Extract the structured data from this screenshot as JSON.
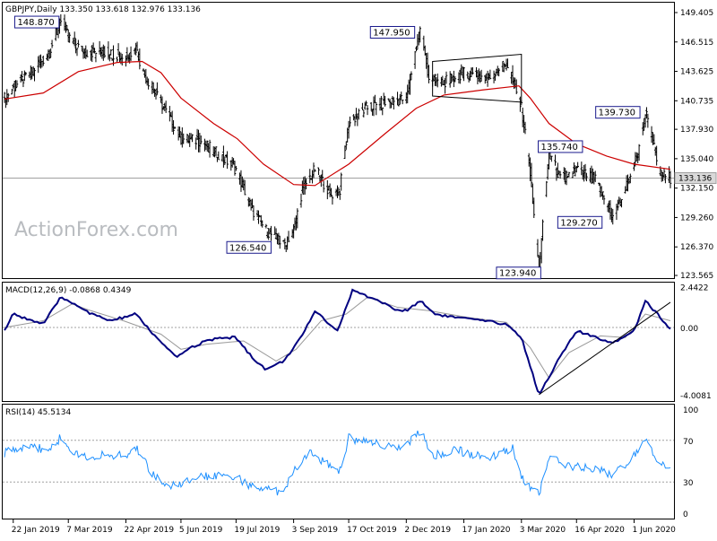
{
  "chart_data": [
    {
      "type": "candlestick",
      "title": "GBPJPY,Daily  133.350 133.618 132.976 133.136",
      "watermark": "ActionForex.com",
      "ylim": [
        123.565,
        149.405
      ],
      "yticks": [
        "149.405",
        "146.515",
        "143.625",
        "140.735",
        "137.930",
        "135.040",
        "132.150",
        "129.260",
        "126.370",
        "123.565"
      ],
      "current_price": "133.136",
      "xticks": [
        "22 Jan 2019",
        "7 Mar 2019",
        "22 Apr 2019",
        "5 Jun 2019",
        "19 Jul 2019",
        "3 Sep 2019",
        "17 Oct 2019",
        "2 Dec 2019",
        "17 Jan 2020",
        "3 Mar 2020",
        "16 Apr 2020",
        "1 Jun 2020"
      ],
      "series": [
        {
          "name": "price",
          "color": "#000000"
        },
        {
          "name": "SMA",
          "color": "#cc0000"
        }
      ],
      "annotations": [
        {
          "label": "148.870",
          "value": 148.87,
          "date": "2019-03-01"
        },
        {
          "label": "147.950",
          "value": 147.95,
          "date": "2019-12-13"
        },
        {
          "label": "126.540",
          "value": 126.54,
          "date": "2019-08-26"
        },
        {
          "label": "139.730",
          "value": 139.73,
          "date": "2020-06-10"
        },
        {
          "label": "135.740",
          "value": 135.74,
          "date": "2020-03-25"
        },
        {
          "label": "129.270",
          "value": 129.27,
          "date": "2020-05-15"
        },
        {
          "label": "123.940",
          "value": 123.94,
          "date": "2020-03-17"
        }
      ],
      "price_path": [
        [
          "2019-01-15",
          141.0
        ],
        [
          "2019-01-22",
          142.0
        ],
        [
          "2019-02-05",
          143.5
        ],
        [
          "2019-02-20",
          145.5
        ],
        [
          "2019-03-01",
          148.87
        ],
        [
          "2019-03-07",
          147.0
        ],
        [
          "2019-03-20",
          145.5
        ],
        [
          "2019-04-05",
          145.5
        ],
        [
          "2019-04-22",
          145.0
        ],
        [
          "2019-04-30",
          145.9
        ],
        [
          "2019-05-06",
          143.5
        ],
        [
          "2019-05-20",
          140.5
        ],
        [
          "2019-06-05",
          137.0
        ],
        [
          "2019-06-20",
          136.8
        ],
        [
          "2019-07-05",
          135.5
        ],
        [
          "2019-07-19",
          134.0
        ],
        [
          "2019-08-01",
          130.0
        ],
        [
          "2019-08-12",
          128.0
        ],
        [
          "2019-08-26",
          126.54
        ],
        [
          "2019-09-03",
          128.0
        ],
        [
          "2019-09-10",
          132.0
        ],
        [
          "2019-09-20",
          134.0
        ],
        [
          "2019-10-03",
          131.5
        ],
        [
          "2019-10-10",
          132.0
        ],
        [
          "2019-10-17",
          138.5
        ],
        [
          "2019-10-31",
          140.0
        ],
        [
          "2019-11-15",
          140.5
        ],
        [
          "2019-12-02",
          141.0
        ],
        [
          "2019-12-13",
          147.95
        ],
        [
          "2019-12-20",
          143.0
        ],
        [
          "2019-12-31",
          142.5
        ],
        [
          "2020-01-17",
          143.5
        ],
        [
          "2020-02-05",
          143.0
        ],
        [
          "2020-02-20",
          144.5
        ],
        [
          "2020-03-03",
          140.0
        ],
        [
          "2020-03-09",
          135.0
        ],
        [
          "2020-03-17",
          123.94
        ],
        [
          "2020-03-25",
          135.74
        ],
        [
          "2020-04-03",
          133.0
        ],
        [
          "2020-04-16",
          134.0
        ],
        [
          "2020-05-01",
          133.0
        ],
        [
          "2020-05-15",
          129.27
        ],
        [
          "2020-05-25",
          132.0
        ],
        [
          "2020-06-05",
          136.0
        ],
        [
          "2020-06-10",
          139.73
        ],
        [
          "2020-06-22",
          133.5
        ],
        [
          "2020-06-30",
          133.14
        ]
      ],
      "sma_path": [
        [
          "2019-01-15",
          140.9
        ],
        [
          "2019-02-15",
          141.5
        ],
        [
          "2019-03-15",
          143.6
        ],
        [
          "2019-04-15",
          144.5
        ],
        [
          "2019-05-05",
          144.6
        ],
        [
          "2019-05-20",
          143.5
        ],
        [
          "2019-06-05",
          141.0
        ],
        [
          "2019-07-01",
          138.5
        ],
        [
          "2019-07-20",
          137.0
        ],
        [
          "2019-08-10",
          134.5
        ],
        [
          "2019-09-03",
          132.5
        ],
        [
          "2019-09-20",
          132.4
        ],
        [
          "2019-10-17",
          134.5
        ],
        [
          "2019-11-15",
          137.5
        ],
        [
          "2019-12-10",
          140.0
        ],
        [
          "2020-01-01",
          141.3
        ],
        [
          "2020-02-01",
          141.8
        ],
        [
          "2020-03-01",
          142.2
        ],
        [
          "2020-03-10",
          141.0
        ],
        [
          "2020-03-25",
          138.5
        ],
        [
          "2020-04-16",
          136.5
        ],
        [
          "2020-05-10",
          135.3
        ],
        [
          "2020-06-01",
          134.5
        ],
        [
          "2020-06-30",
          134.0
        ]
      ]
    },
    {
      "type": "line",
      "title": "MACD(12,26,9) -0.0868 0.4349",
      "yticks": [
        "2.4422",
        "0.00",
        "-4.0081"
      ],
      "ylim": [
        -4.0081,
        2.4422
      ],
      "trendline": [
        [
          "2020-03-17",
          -4.0
        ],
        [
          "2020-06-30",
          1.5
        ]
      ],
      "series": [
        {
          "name": "MACD",
          "color": "#000080"
        },
        {
          "name": "Signal",
          "color": "#999999"
        }
      ],
      "macd_path": [
        [
          "2019-01-15",
          -0.2
        ],
        [
          "2019-01-22",
          0.8
        ],
        [
          "2019-02-15",
          0.2
        ],
        [
          "2019-03-01",
          1.8
        ],
        [
          "2019-03-15",
          1.3
        ],
        [
          "2019-03-25",
          0.8
        ],
        [
          "2019-04-10",
          0.4
        ],
        [
          "2019-04-30",
          0.8
        ],
        [
          "2019-05-15",
          -0.5
        ],
        [
          "2019-06-01",
          -1.8
        ],
        [
          "2019-06-10",
          -1.3
        ],
        [
          "2019-06-25",
          -0.8
        ],
        [
          "2019-07-10",
          -0.6
        ],
        [
          "2019-07-19",
          -0.6
        ],
        [
          "2019-08-01",
          -1.8
        ],
        [
          "2019-08-12",
          -2.5
        ],
        [
          "2019-08-26",
          -2.0
        ],
        [
          "2019-09-10",
          -0.5
        ],
        [
          "2019-09-20",
          1.0
        ],
        [
          "2019-10-08",
          -0.2
        ],
        [
          "2019-10-20",
          2.2
        ],
        [
          "2019-11-10",
          1.6
        ],
        [
          "2019-11-25",
          1.0
        ],
        [
          "2019-12-02",
          1.0
        ],
        [
          "2019-12-13",
          1.6
        ],
        [
          "2019-12-25",
          0.8
        ],
        [
          "2020-01-10",
          0.6
        ],
        [
          "2020-02-01",
          0.4
        ],
        [
          "2020-02-20",
          0.2
        ],
        [
          "2020-03-03",
          -0.6
        ],
        [
          "2020-03-17",
          -4.0
        ],
        [
          "2020-04-01",
          -2.0
        ],
        [
          "2020-04-16",
          -0.2
        ],
        [
          "2020-05-01",
          -0.6
        ],
        [
          "2020-05-15",
          -0.9
        ],
        [
          "2020-06-01",
          -0.2
        ],
        [
          "2020-06-10",
          1.6
        ],
        [
          "2020-06-22",
          0.6
        ],
        [
          "2020-06-30",
          -0.1
        ]
      ],
      "signal_path": [
        [
          "2019-01-15",
          0.0
        ],
        [
          "2019-02-15",
          0.4
        ],
        [
          "2019-03-10",
          1.4
        ],
        [
          "2019-03-25",
          1.0
        ],
        [
          "2019-04-20",
          0.4
        ],
        [
          "2019-05-20",
          -0.4
        ],
        [
          "2019-06-05",
          -1.3
        ],
        [
          "2019-06-25",
          -1.0
        ],
        [
          "2019-07-25",
          -0.8
        ],
        [
          "2019-08-20",
          -2.0
        ],
        [
          "2019-09-05",
          -1.3
        ],
        [
          "2019-09-25",
          0.4
        ],
        [
          "2019-10-15",
          0.8
        ],
        [
          "2019-11-01",
          1.8
        ],
        [
          "2019-11-25",
          1.2
        ],
        [
          "2019-12-20",
          1.0
        ],
        [
          "2020-01-20",
          0.6
        ],
        [
          "2020-02-20",
          0.3
        ],
        [
          "2020-03-10",
          -1.2
        ],
        [
          "2020-03-25",
          -3.0
        ],
        [
          "2020-04-10",
          -1.5
        ],
        [
          "2020-05-05",
          -0.5
        ],
        [
          "2020-05-25",
          -0.6
        ],
        [
          "2020-06-10",
          0.8
        ],
        [
          "2020-06-30",
          0.4
        ]
      ]
    },
    {
      "type": "line",
      "title": "RSI(14) 45.5134",
      "yticks": [
        "100",
        "70",
        "30",
        "0"
      ],
      "ylim": [
        0,
        100
      ],
      "series": [
        {
          "name": "RSI",
          "color": "#1e90ff"
        }
      ],
      "rsi_path": [
        [
          "2019-01-15",
          58
        ],
        [
          "2019-01-22",
          62
        ],
        [
          "2019-02-05",
          66
        ],
        [
          "2019-02-15",
          60
        ],
        [
          "2019-03-01",
          72
        ],
        [
          "2019-03-15",
          55
        ],
        [
          "2019-04-01",
          55
        ],
        [
          "2019-04-22",
          55
        ],
        [
          "2019-05-01",
          62
        ],
        [
          "2019-05-15",
          35
        ],
        [
          "2019-06-01",
          25
        ],
        [
          "2019-06-20",
          35
        ],
        [
          "2019-07-10",
          38
        ],
        [
          "2019-07-19",
          35
        ],
        [
          "2019-08-01",
          25
        ],
        [
          "2019-08-26",
          20
        ],
        [
          "2019-09-03",
          40
        ],
        [
          "2019-09-15",
          60
        ],
        [
          "2019-10-03",
          45
        ],
        [
          "2019-10-10",
          42
        ],
        [
          "2019-10-17",
          72
        ],
        [
          "2019-11-15",
          65
        ],
        [
          "2019-12-02",
          65
        ],
        [
          "2019-12-13",
          78
        ],
        [
          "2019-12-25",
          55
        ],
        [
          "2020-01-10",
          62
        ],
        [
          "2020-01-25",
          55
        ],
        [
          "2020-02-10",
          55
        ],
        [
          "2020-02-25",
          62
        ],
        [
          "2020-03-05",
          30
        ],
        [
          "2020-03-17",
          18
        ],
        [
          "2020-03-25",
          55
        ],
        [
          "2020-04-10",
          45
        ],
        [
          "2020-04-25",
          45
        ],
        [
          "2020-05-10",
          40
        ],
        [
          "2020-05-15",
          35
        ],
        [
          "2020-06-01",
          55
        ],
        [
          "2020-06-10",
          72
        ],
        [
          "2020-06-22",
          45
        ],
        [
          "2020-06-30",
          45.5
        ]
      ]
    }
  ]
}
